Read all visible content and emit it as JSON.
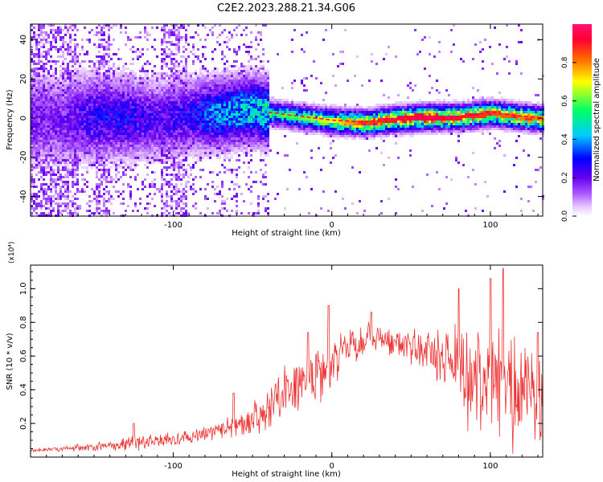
{
  "title": "C2E2.2023.288.21.34.G06",
  "chart_data": [
    {
      "type": "heatmap",
      "xlabel": "Height of straight line (km)",
      "ylabel": "Frequency (Hz)",
      "xlim": [
        -190,
        133
      ],
      "ylim": [
        -50,
        48
      ],
      "xticks": [
        -100,
        0,
        100
      ],
      "yticks": [
        -40,
        -20,
        0,
        20,
        40
      ],
      "colorbar": {
        "label": "Normalized spectral amplitude",
        "range": [
          0,
          1
        ],
        "ticks": [
          0.0,
          0.2,
          0.4,
          0.6,
          0.8
        ],
        "colormap": "rainbow (white-purple-blue-cyan-green-yellow-red-pink)"
      },
      "ridge": {
        "description": "Strong narrow signal near 0 Hz across heights",
        "x": [
          -170,
          -150,
          -130,
          -110,
          -90,
          -70,
          -50,
          -40,
          -20,
          0,
          20,
          40,
          60,
          80,
          100,
          120,
          133
        ],
        "freq": [
          0,
          1,
          1,
          0,
          2,
          3,
          5,
          3,
          1,
          -1,
          -2,
          0,
          1,
          1,
          3,
          1,
          0
        ],
        "peak_amplitude": [
          0.2,
          0.3,
          0.3,
          0.25,
          0.3,
          0.45,
          0.5,
          0.55,
          0.6,
          0.7,
          0.85,
          0.9,
          0.95,
          0.9,
          0.85,
          0.8,
          0.8
        ]
      }
    },
    {
      "type": "line",
      "xlabel": "Height of straight line (km)",
      "ylabel": "SNR (10 * v/v)",
      "y_multiplier": "(x10⁴)",
      "xlim": [
        -190,
        133
      ],
      "ylim": [
        0,
        1.14
      ],
      "xticks": [
        -100,
        0,
        100
      ],
      "yticks": [
        0.2,
        0.4,
        0.6,
        0.8,
        1.0
      ],
      "series": [
        {
          "color": "#ee3333",
          "envelope_x": [
            -190,
            -170,
            -150,
            -130,
            -110,
            -90,
            -70,
            -60,
            -50,
            -40,
            -30,
            -20,
            -10,
            0,
            10,
            20,
            25,
            30,
            40,
            50,
            60,
            70,
            80,
            90,
            95,
            100,
            105,
            110,
            120,
            133
          ],
          "envelope_y": [
            0.04,
            0.05,
            0.06,
            0.08,
            0.09,
            0.12,
            0.16,
            0.2,
            0.22,
            0.3,
            0.4,
            0.45,
            0.5,
            0.55,
            0.62,
            0.68,
            0.72,
            0.7,
            0.68,
            0.66,
            0.64,
            0.6,
            0.55,
            0.5,
            0.48,
            0.45,
            0.42,
            0.4,
            0.36,
            0.35
          ],
          "spread": [
            0.01,
            0.02,
            0.03,
            0.05,
            0.05,
            0.06,
            0.06,
            0.08,
            0.1,
            0.15,
            0.2,
            0.2,
            0.2,
            0.18,
            0.15,
            0.12,
            0.1,
            0.1,
            0.1,
            0.12,
            0.15,
            0.2,
            0.35,
            0.4,
            0.45,
            0.45,
            0.45,
            0.4,
            0.35,
            0.3
          ],
          "notable_peaks": [
            {
              "x": -125,
              "y": 0.2
            },
            {
              "x": -62,
              "y": 0.38
            },
            {
              "x": -15,
              "y": 0.74
            },
            {
              "x": -2,
              "y": 0.9
            },
            {
              "x": 25,
              "y": 0.86
            },
            {
              "x": 80,
              "y": 1.0
            },
            {
              "x": 100,
              "y": 1.06
            },
            {
              "x": 108,
              "y": 1.12
            },
            {
              "x": 130,
              "y": 0.74
            }
          ]
        }
      ]
    }
  ]
}
